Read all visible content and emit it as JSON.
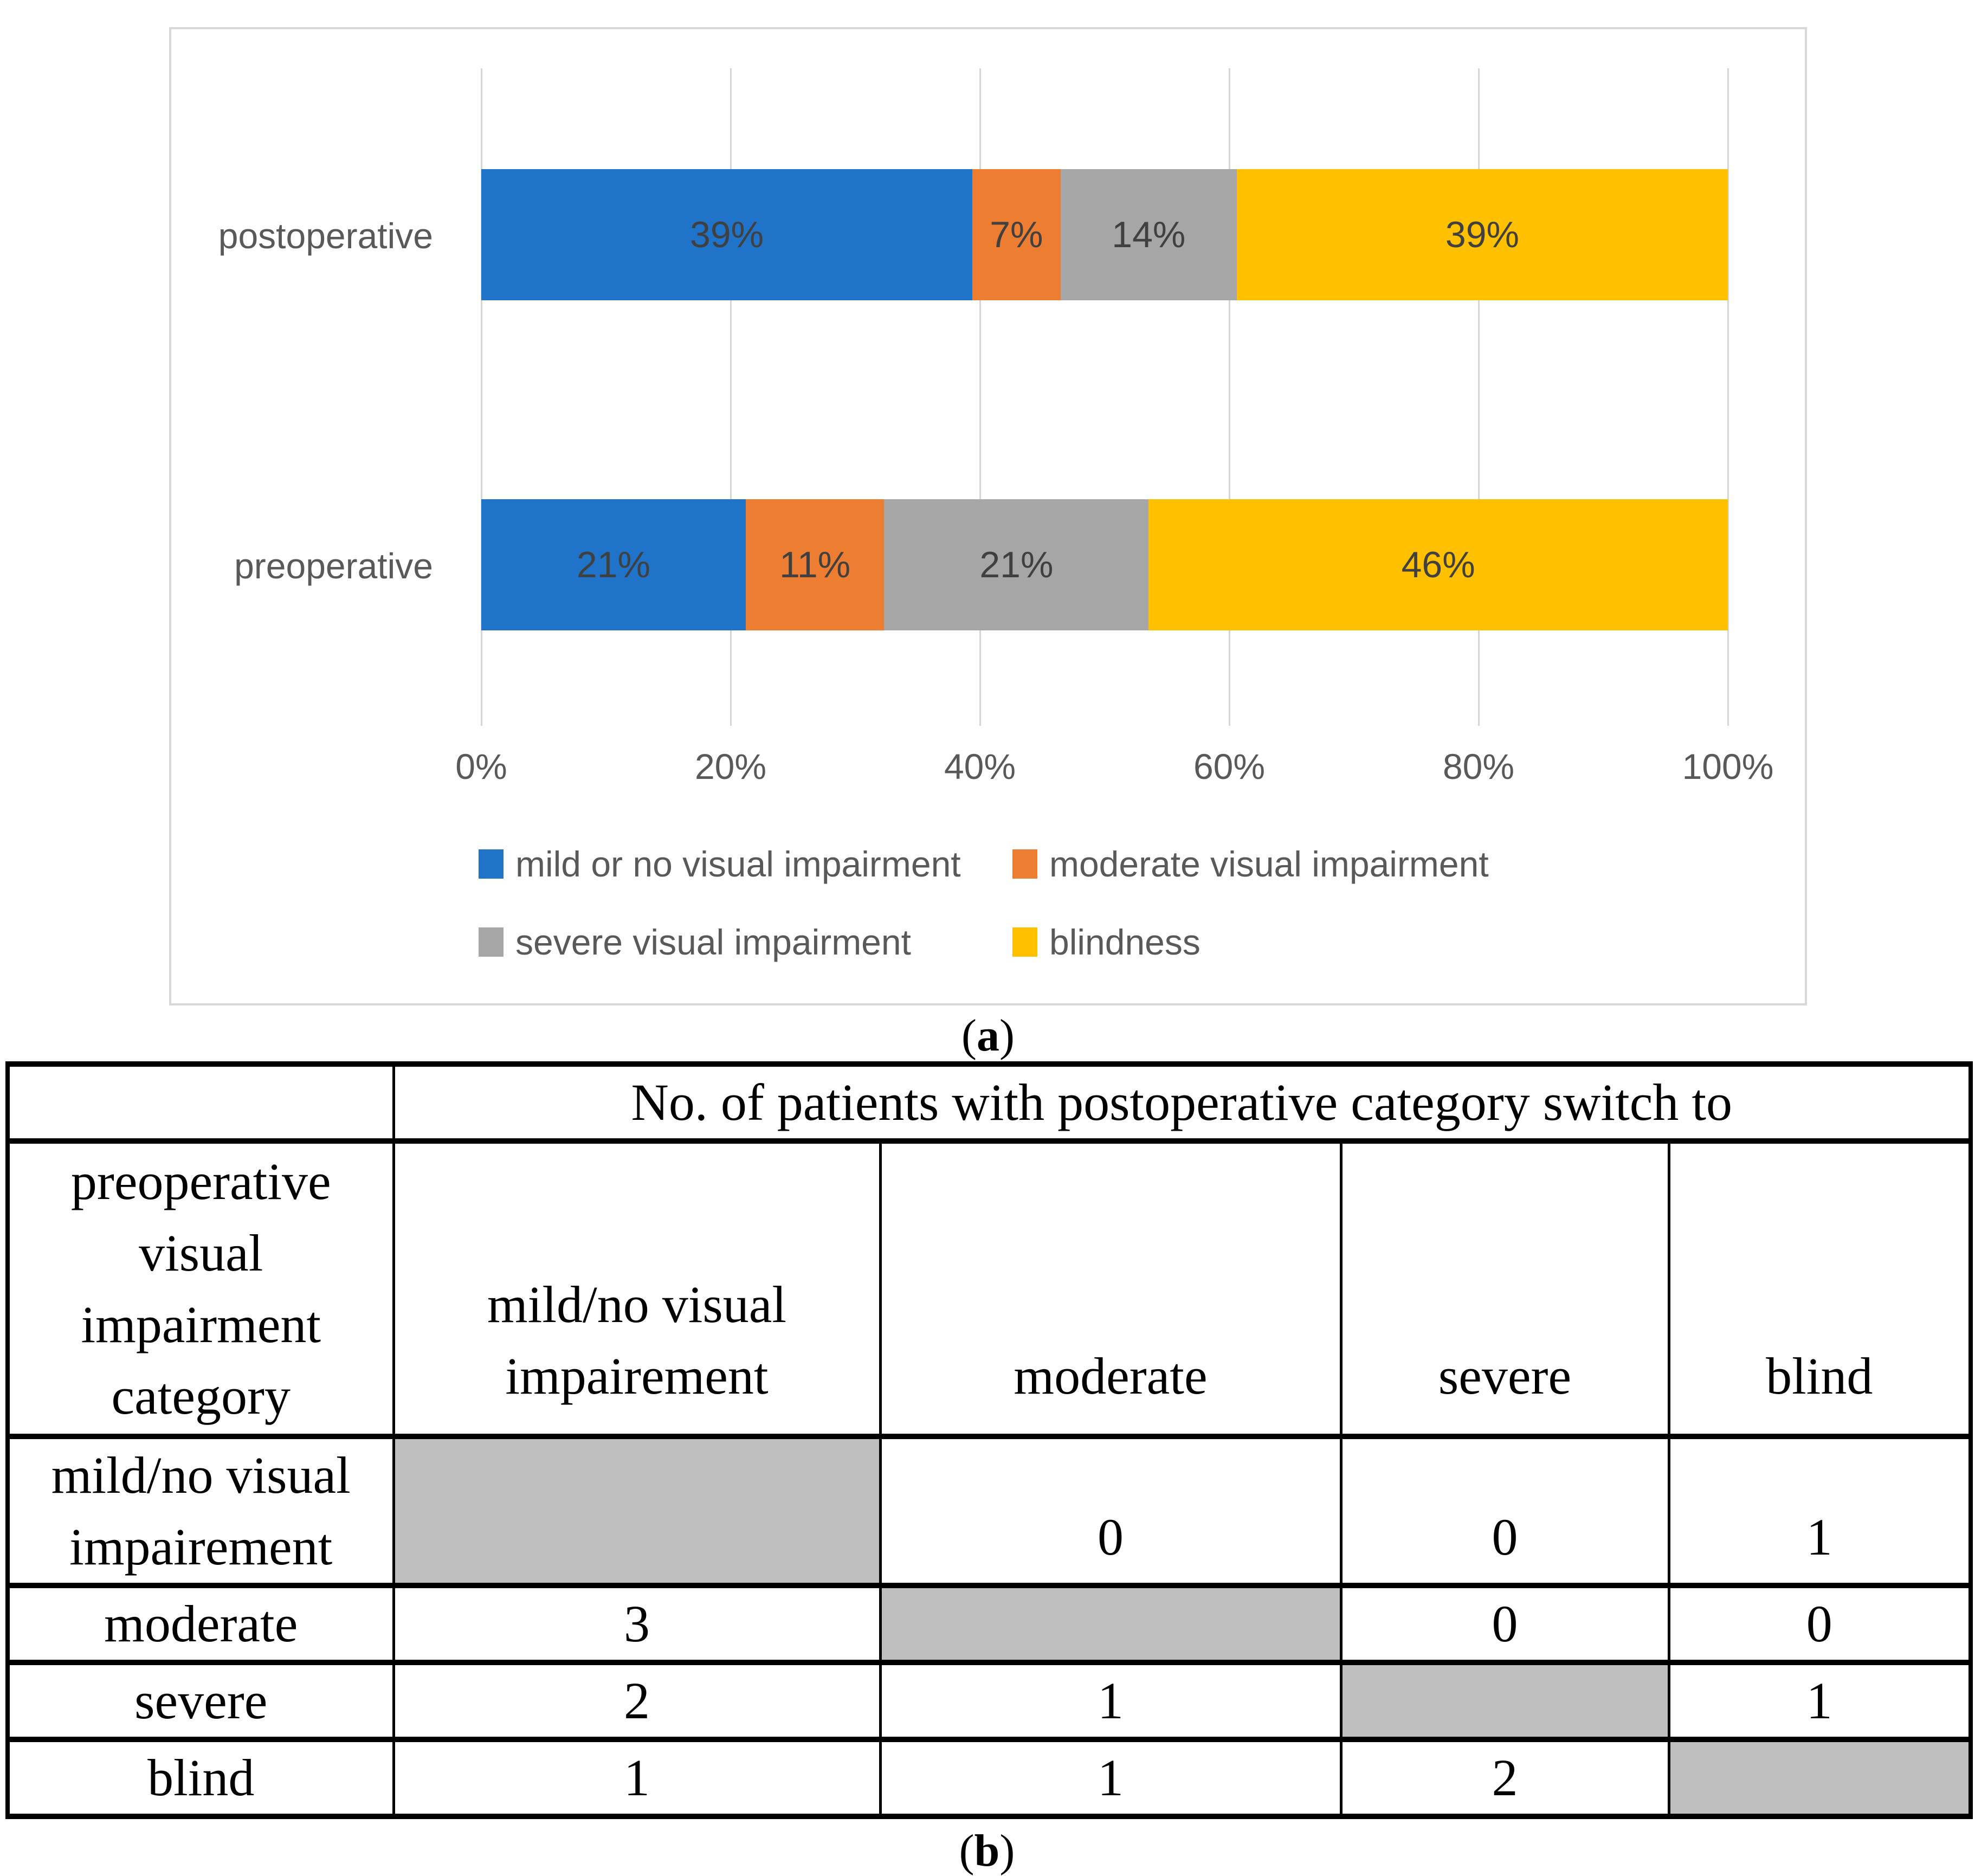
{
  "captions": {
    "a_open": "(",
    "a_letter": "a",
    "a_close": ")",
    "b_open": "(",
    "b_letter": "b",
    "b_close": ")"
  },
  "chart_data": {
    "type": "bar",
    "orientation": "horizontal",
    "stacked": true,
    "title": "",
    "xlabel": "",
    "ylabel": "",
    "categories": [
      "postoperative",
      "preoperative"
    ],
    "series": [
      {
        "name": "mild or no visual impairment",
        "color": "#1F73C8",
        "values": [
          39,
          21
        ]
      },
      {
        "name": "moderate visual impairment",
        "color": "#ED7D31",
        "values": [
          7,
          11
        ]
      },
      {
        "name": "severe visual impairment",
        "color": "#A6A6A6",
        "values": [
          14,
          21
        ]
      },
      {
        "name": "blindness",
        "color": "#FFC000",
        "values": [
          39,
          46
        ]
      }
    ],
    "data_labels": [
      [
        "39%",
        "7%",
        "14%",
        "39%"
      ],
      [
        "21%",
        "11%",
        "21%",
        "46%"
      ]
    ],
    "x_ticks": [
      "0%",
      "20%",
      "40%",
      "60%",
      "80%",
      "100%"
    ],
    "xlim": [
      0,
      100
    ],
    "grid": "vertical",
    "gridline_color": "#D6D6D6",
    "legend_position": "bottom-left"
  },
  "table": {
    "span_header": "No. of patients with postoperative category switch to",
    "corner_blank": "",
    "row_header_lines": [
      "preoperative",
      "visual",
      "impairment",
      "category"
    ],
    "col_headers": [
      {
        "lines": [
          "mild/no visual",
          "impairement"
        ]
      },
      {
        "lines": [
          "moderate"
        ]
      },
      {
        "lines": [
          "severe"
        ]
      },
      {
        "lines": [
          "blind"
        ]
      }
    ],
    "rows": [
      {
        "label_lines": [
          "mild/no visual",
          "impairement"
        ],
        "cells": [
          "",
          "0",
          "0",
          "1"
        ],
        "gray_col": 0
      },
      {
        "label_lines": [
          "moderate"
        ],
        "cells": [
          "3",
          "",
          "0",
          "0"
        ],
        "gray_col": 1
      },
      {
        "label_lines": [
          "severe"
        ],
        "cells": [
          "2",
          "1",
          "",
          "1"
        ],
        "gray_col": 2
      },
      {
        "label_lines": [
          "blind"
        ],
        "cells": [
          "1",
          "1",
          "2",
          ""
        ],
        "gray_col": 3
      }
    ],
    "gray_fill": "#BFBFBF"
  }
}
